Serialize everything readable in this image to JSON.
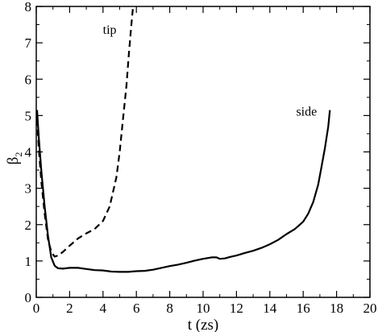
{
  "chart_data": {
    "type": "line",
    "title": "",
    "xlabel": "t  (zs)",
    "ylabel_main": "β",
    "ylabel_sub": "2",
    "xlim": [
      0,
      20
    ],
    "ylim": [
      0,
      8
    ],
    "x_ticks": [
      0,
      2,
      4,
      6,
      8,
      10,
      12,
      14,
      16,
      18,
      20
    ],
    "y_ticks": [
      0,
      1,
      2,
      3,
      4,
      5,
      6,
      7,
      8
    ],
    "grid": false,
    "legend": "none",
    "series": [
      {
        "name": "side",
        "style": "solid",
        "color": "#000000",
        "x": [
          0.05,
          0.15,
          0.3,
          0.5,
          0.7,
          0.9,
          1.1,
          1.3,
          1.6,
          2.0,
          2.5,
          3.0,
          3.5,
          4.0,
          4.5,
          5.0,
          5.5,
          6.0,
          6.5,
          7.0,
          7.5,
          8.0,
          8.5,
          9.0,
          9.5,
          10.0,
          10.5,
          10.8,
          11.0,
          11.3,
          11.6,
          12.0,
          12.5,
          13.0,
          13.5,
          14.0,
          14.5,
          15.0,
          15.5,
          16.0,
          16.3,
          16.6,
          16.9,
          17.1,
          17.3,
          17.5,
          17.6
        ],
        "y": [
          5.15,
          4.4,
          3.5,
          2.5,
          1.7,
          1.1,
          0.87,
          0.8,
          0.79,
          0.81,
          0.81,
          0.78,
          0.75,
          0.74,
          0.71,
          0.7,
          0.7,
          0.72,
          0.73,
          0.76,
          0.81,
          0.86,
          0.9,
          0.95,
          1.01,
          1.06,
          1.1,
          1.1,
          1.06,
          1.07,
          1.11,
          1.15,
          1.22,
          1.28,
          1.36,
          1.46,
          1.58,
          1.74,
          1.88,
          2.08,
          2.3,
          2.62,
          3.1,
          3.6,
          4.1,
          4.7,
          5.15
        ]
      },
      {
        "name": "tip",
        "style": "dashed",
        "color": "#000000",
        "x": [
          0.05,
          0.15,
          0.3,
          0.5,
          0.7,
          0.9,
          1.1,
          1.3,
          1.6,
          2.0,
          2.5,
          3.0,
          3.5,
          4.0,
          4.4,
          4.8,
          5.0,
          5.2,
          5.4,
          5.55,
          5.7,
          5.8
        ],
        "y": [
          4.9,
          4.1,
          3.2,
          2.3,
          1.6,
          1.25,
          1.12,
          1.15,
          1.25,
          1.42,
          1.62,
          1.76,
          1.88,
          2.1,
          2.5,
          3.3,
          4.0,
          4.9,
          5.8,
          6.7,
          7.5,
          8.0
        ]
      }
    ],
    "annotations": [
      {
        "text": "tip",
        "x": 4.4,
        "y": 7.25
      },
      {
        "text": "side",
        "x": 16.2,
        "y": 5.0
      }
    ]
  }
}
